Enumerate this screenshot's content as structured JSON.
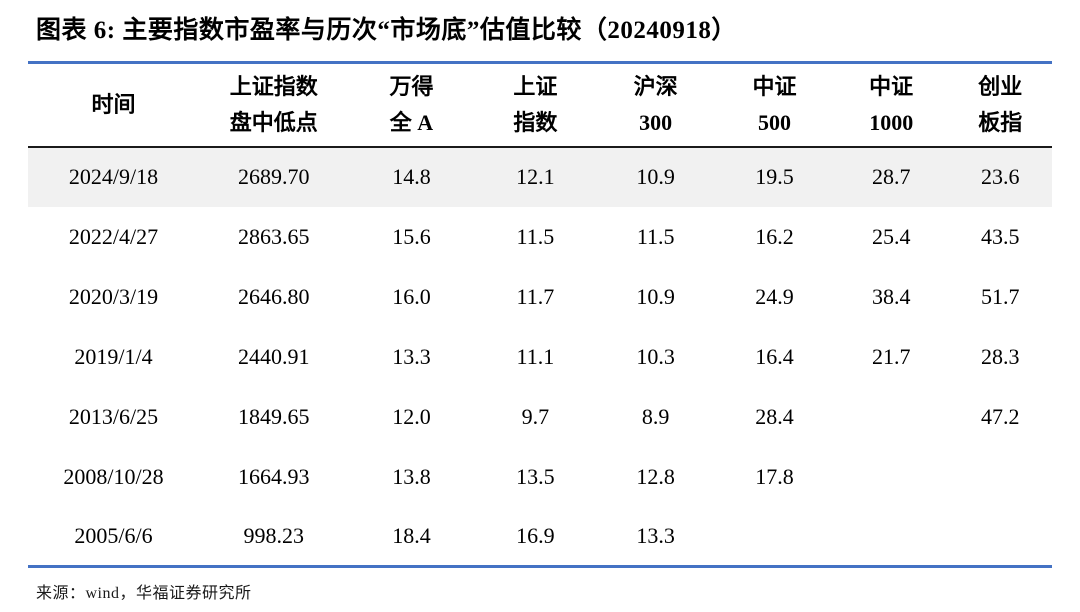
{
  "title": "图表 6:  主要指数市盈率与历次“市场底”估值比较（20240918）",
  "source": "来源：wind，华福证券研究所",
  "colors": {
    "accent_blue": "#4472C4",
    "header_rule_black": "#1a1a1a",
    "row_highlight_gray": "#f1f1f1"
  },
  "table": {
    "columns": [
      {
        "line1": "时间",
        "line2": ""
      },
      {
        "line1": "上证指数",
        "line2": "盘中低点"
      },
      {
        "line1": "万得",
        "line2": "全 A"
      },
      {
        "line1": "上证",
        "line2": "指数"
      },
      {
        "line1": "沪深",
        "line2": "300"
      },
      {
        "line1": "中证",
        "line2": "500"
      },
      {
        "line1": "中证",
        "line2": "1000"
      },
      {
        "line1": "创业",
        "line2": "板指"
      }
    ],
    "column_widths_pct": [
      16.7,
      14.6,
      12.3,
      11.9,
      11.6,
      11.6,
      11.2,
      10.1
    ],
    "highlighted_row_index": 0,
    "rows": [
      [
        "2024/9/18",
        "2689.70",
        "14.8",
        "12.1",
        "10.9",
        "19.5",
        "28.7",
        "23.6"
      ],
      [
        "2022/4/27",
        "2863.65",
        "15.6",
        "11.5",
        "11.5",
        "16.2",
        "25.4",
        "43.5"
      ],
      [
        "2020/3/19",
        "2646.80",
        "16.0",
        "11.7",
        "10.9",
        "24.9",
        "38.4",
        "51.7"
      ],
      [
        "2019/1/4",
        "2440.91",
        "13.3",
        "11.1",
        "10.3",
        "16.4",
        "21.7",
        "28.3"
      ],
      [
        "2013/6/25",
        "1849.65",
        "12.0",
        "9.7",
        "8.9",
        "28.4",
        "",
        "47.2"
      ],
      [
        "2008/10/28",
        "1664.93",
        "13.8",
        "13.5",
        "12.8",
        "17.8",
        "",
        ""
      ],
      [
        "2005/6/6",
        "998.23",
        "18.4",
        "16.9",
        "13.3",
        "",
        "",
        ""
      ]
    ]
  }
}
